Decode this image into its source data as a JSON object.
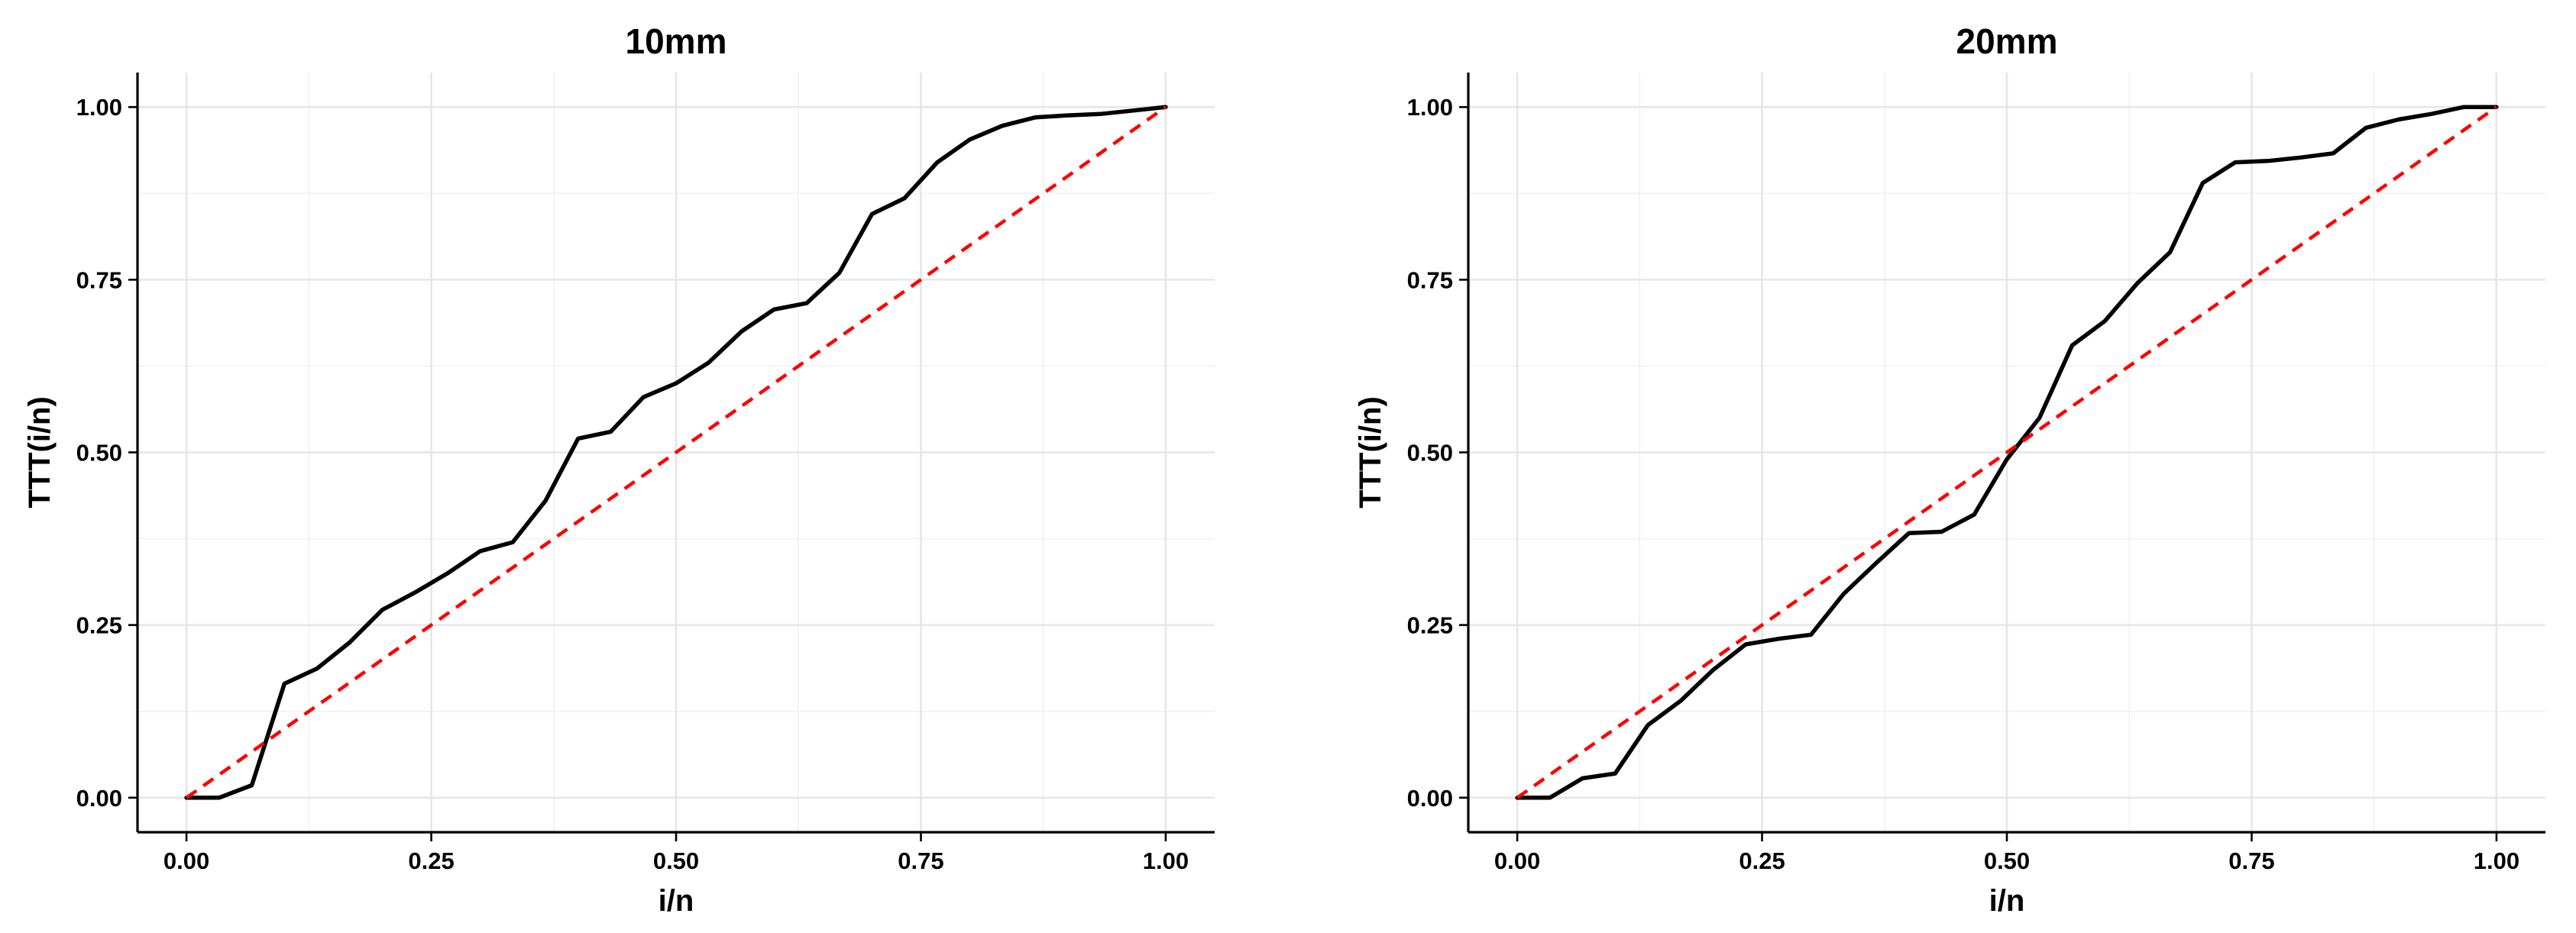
{
  "chart_data": [
    {
      "type": "line",
      "title": "10mm",
      "xlabel": "i/n",
      "ylabel": "TTT(i/n)",
      "xlim": [
        -0.05,
        1.05
      ],
      "ylim": [
        -0.05,
        1.05
      ],
      "x_ticks": [
        "0.00",
        "0.25",
        "0.50",
        "0.75",
        "1.00"
      ],
      "y_ticks": [
        "0.00",
        "0.25",
        "0.50",
        "0.75",
        "1.00"
      ],
      "grid": true,
      "series": [
        {
          "color": "#000000",
          "style": "solid",
          "x": [
            0,
            0.0333,
            0.0667,
            0.1,
            0.1333,
            0.1667,
            0.2,
            0.2333,
            0.2667,
            0.3,
            0.3333,
            0.3667,
            0.4,
            0.4333,
            0.4667,
            0.5,
            0.5333,
            0.5667,
            0.6,
            0.6333,
            0.6667,
            0.7,
            0.7333,
            0.7667,
            0.8,
            0.8333,
            0.8667,
            0.9,
            0.9333,
            0.9667,
            1.0
          ],
          "y": [
            0,
            0,
            0.018,
            0.165,
            0.187,
            0.225,
            0.272,
            0.297,
            0.325,
            0.357,
            0.37,
            0.43,
            0.52,
            0.53,
            0.58,
            0.6,
            0.63,
            0.675,
            0.707,
            0.716,
            0.76,
            0.845,
            0.868,
            0.92,
            0.953,
            0.973,
            0.985,
            0.988,
            0.99,
            0.995,
            1.0
          ]
        },
        {
          "color": "#ff0000",
          "style": "dashed",
          "x": [
            0,
            1
          ],
          "y": [
            0,
            1
          ]
        }
      ]
    },
    {
      "type": "line",
      "title": "20mm",
      "xlabel": "i/n",
      "ylabel": "TTT(i/n)",
      "xlim": [
        -0.05,
        1.05
      ],
      "ylim": [
        -0.05,
        1.05
      ],
      "x_ticks": [
        "0.00",
        "0.25",
        "0.50",
        "0.75",
        "1.00"
      ],
      "y_ticks": [
        "0.00",
        "0.25",
        "0.50",
        "0.75",
        "1.00"
      ],
      "grid": true,
      "series": [
        {
          "color": "#000000",
          "style": "solid",
          "x": [
            0,
            0.0333,
            0.0667,
            0.1,
            0.1333,
            0.1667,
            0.2,
            0.2333,
            0.2667,
            0.3,
            0.3333,
            0.3667,
            0.4,
            0.4333,
            0.4667,
            0.5,
            0.5333,
            0.5667,
            0.6,
            0.6333,
            0.6667,
            0.7,
            0.7333,
            0.7667,
            0.8,
            0.8333,
            0.8667,
            0.9,
            0.9333,
            0.9667,
            1.0
          ],
          "y": [
            0,
            0,
            0.028,
            0.035,
            0.105,
            0.14,
            0.185,
            0.222,
            0.23,
            0.236,
            0.295,
            0.34,
            0.383,
            0.385,
            0.41,
            0.49,
            0.55,
            0.655,
            0.69,
            0.745,
            0.79,
            0.89,
            0.92,
            0.922,
            0.927,
            0.933,
            0.97,
            0.982,
            0.99,
            1.0,
            1.0
          ]
        },
        {
          "color": "#ff0000",
          "style": "dashed",
          "x": [
            0,
            1
          ],
          "y": [
            0,
            1
          ]
        }
      ]
    }
  ]
}
